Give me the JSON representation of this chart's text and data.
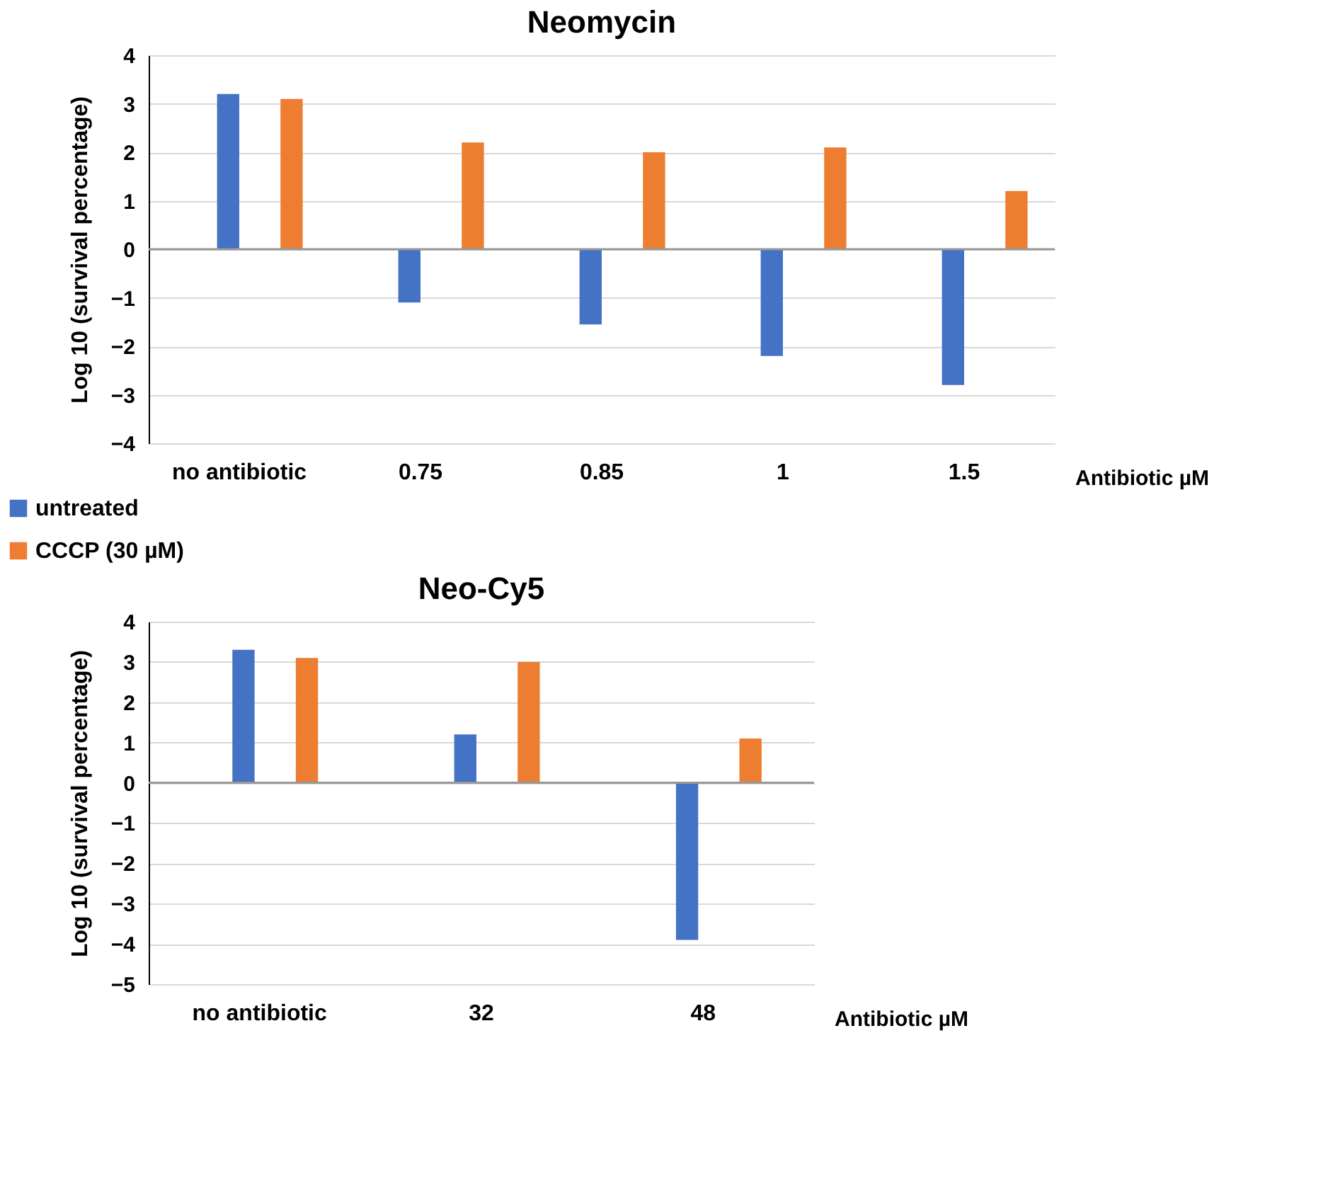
{
  "chart_data": [
    {
      "type": "bar",
      "title": "Neomycin",
      "xlabel": "Antibiotic µM",
      "ylabel": "Log 10 (survival percentage)",
      "categories": [
        "no antibiotic",
        "0.75",
        "0.85",
        "1",
        "1.5"
      ],
      "series": [
        {
          "name": "untreated",
          "color": "#4472c4",
          "values": [
            3.2,
            -1.1,
            -1.55,
            -2.2,
            -2.8
          ]
        },
        {
          "name": "CCCP (30 µM)",
          "color": "#ed7d31",
          "values": [
            3.1,
            2.2,
            2.0,
            2.1,
            1.2
          ]
        }
      ],
      "ylim": [
        -4,
        4
      ],
      "yticks": [
        -4,
        -3,
        -2,
        -1,
        0,
        1,
        2,
        3,
        4
      ],
      "grid": "y",
      "legend": "bottom left"
    },
    {
      "type": "bar",
      "title": "Neo-Cy5",
      "xlabel": "Antibiotic µM",
      "ylabel": "Log 10 (survival percentage)",
      "categories": [
        "no antibiotic",
        "32",
        "48"
      ],
      "series": [
        {
          "name": "untreated",
          "color": "#4472c4",
          "values": [
            3.3,
            1.2,
            -3.9
          ]
        },
        {
          "name": "CCCP (30 µM)",
          "color": "#ed7d31",
          "values": [
            3.1,
            3.0,
            1.1
          ]
        }
      ],
      "ylim": [
        -5,
        4
      ],
      "yticks": [
        -5,
        -4,
        -3,
        -2,
        -1,
        0,
        1,
        2,
        3,
        4
      ],
      "grid": "y",
      "legend": "bottom left"
    }
  ]
}
